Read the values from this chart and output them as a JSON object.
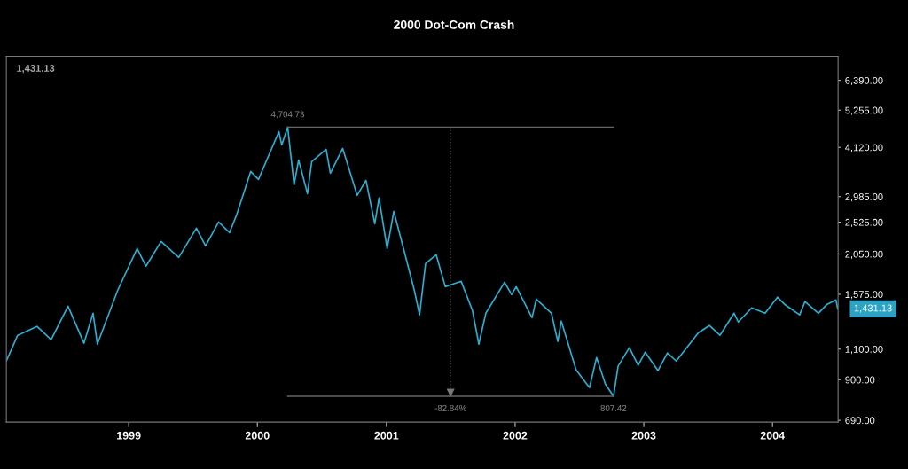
{
  "chart_data": {
    "type": "line",
    "title": "2000 Dot-Com Crash",
    "x": [
      "1998-01-19",
      "1998-02-20",
      "1998-04-16",
      "1998-05-26",
      "1998-07-13",
      "1998-08-27",
      "1998-09-22",
      "1998-10-04",
      "1998-12-01",
      "1999-01-25",
      "1999-02-19",
      "1999-04-03",
      "1999-05-23",
      "1999-07-12",
      "1999-08-07",
      "1999-09-13",
      "1999-10-14",
      "1999-11-03",
      "1999-12-13",
      "2000-01-04",
      "2000-03-02",
      "2000-03-10",
      "2000-03-27",
      "2000-04-14",
      "2000-04-27",
      "2000-05-22",
      "2000-06-03",
      "2000-07-14",
      "2000-07-26",
      "2000-08-30",
      "2000-10-10",
      "2000-11-04",
      "2000-11-29",
      "2000-12-11",
      "2001-01-03",
      "2001-01-22",
      "2001-02-23",
      "2001-03-21",
      "2001-04-05",
      "2001-04-22",
      "2001-05-22",
      "2001-06-17",
      "2001-08-01",
      "2001-09-02",
      "2001-09-20",
      "2001-10-10",
      "2001-12-02",
      "2001-12-22",
      "2002-01-04",
      "2002-02-18",
      "2002-03-02",
      "2002-04-14",
      "2002-05-02",
      "2002-05-12",
      "2002-06-23",
      "2002-07-31",
      "2002-08-20",
      "2002-09-14",
      "2002-10-07",
      "2002-10-20",
      "2002-11-21",
      "2002-12-16",
      "2003-01-05",
      "2003-02-10",
      "2003-03-09",
      "2003-04-03",
      "2003-06-05",
      "2003-07-06",
      "2003-08-05",
      "2003-09-14",
      "2003-09-26",
      "2003-11-03",
      "2003-12-11",
      "2004-01-15",
      "2004-02-04",
      "2004-03-18",
      "2004-04-02",
      "2004-05-10",
      "2004-06-04",
      "2004-06-29",
      "2004-07-04"
    ],
    "series": [
      {
        "color": "#2aaed2",
        "values": [
          1017,
          1204,
          1276,
          1170,
          1457,
          1143,
          1391,
          1136,
          1618,
          2124,
          1892,
          2225,
          2005,
          2428,
          2162,
          2528,
          2358,
          2648,
          3518,
          3340,
          4567,
          4187,
          4704.73,
          3225,
          3793,
          3044,
          3749,
          4067,
          3477,
          4091,
          3009,
          3320,
          2499,
          2957,
          2124,
          2710,
          2040,
          1618,
          1376,
          1925,
          2040,
          1655,
          1714,
          1416,
          1136,
          1391,
          1704,
          1572,
          1655,
          1351,
          1526,
          1391,
          1156,
          1321,
          960,
          855,
          1041,
          875,
          807.42,
          983,
          1110,
          989,
          1078,
          955,
          1072,
          1017,
          1225,
          1283,
          1204,
          1391,
          1313,
          1441,
          1391,
          1545,
          1475,
          1376,
          1501,
          1391,
          1475,
          1517,
          1431.13
        ]
      }
    ],
    "log": "y",
    "xlim": [
      "1998-01-19",
      "2004-07-05"
    ],
    "xticks": [
      {
        "value": "1999-01-01",
        "label": "1999"
      },
      {
        "value": "2000-01-01",
        "label": "2000"
      },
      {
        "value": "2001-01-01",
        "label": "2001"
      },
      {
        "value": "2002-01-01",
        "label": "2002"
      },
      {
        "value": "2003-01-01",
        "label": "2003"
      },
      {
        "value": "2004-01-01",
        "label": "2004"
      }
    ],
    "ylim": [
      682,
      7480
    ],
    "yticks": [
      {
        "value": 690,
        "label": "690.00"
      },
      {
        "value": 900,
        "label": "900.00"
      },
      {
        "value": 1100,
        "label": "1,100.00"
      },
      {
        "value": 1575,
        "label": "1,575.00"
      },
      {
        "value": 2050,
        "label": "2,050.00"
      },
      {
        "value": 2525,
        "label": "2,525.00"
      },
      {
        "value": 2985,
        "label": "2,985.00"
      },
      {
        "value": 4120,
        "label": "4,120.00"
      },
      {
        "value": 5255,
        "label": "5,255.00"
      },
      {
        "value": 6390,
        "label": "6,390.00"
      }
    ],
    "grid": false,
    "annotations": [
      "1,431.13",
      {
        "text": "4,704.73",
        "x": "2000-03-27",
        "y": 4704.73
      },
      {
        "text": "807.42",
        "x": "2002-10-07",
        "y": 807.42
      },
      "-82.84%",
      {
        "text": "1,431.13",
        "x": "2004-07-04",
        "y": 1431.13
      }
    ]
  }
}
